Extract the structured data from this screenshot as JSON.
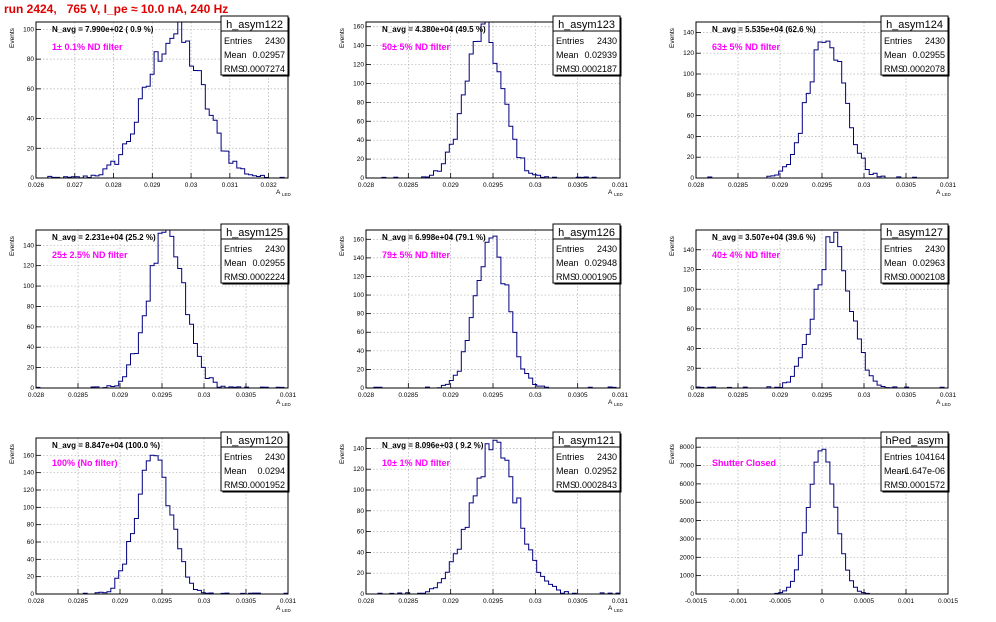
{
  "header": {
    "title": "run 2424,   765 V, I_pe ≈ 10.0 nA, 240 Hz"
  },
  "colors": {
    "title": "#e00000",
    "histogram_line": "#000080",
    "filter_label": "#ff00ff",
    "grid": "#b0b0b0",
    "axis": "#000000"
  },
  "chart_data": [
    {
      "type": "histogram",
      "name": "h_asym122",
      "navg": "N_avg = 7.990e+02 ( 0.9 %)",
      "filter": "1± 0.1% ND filter",
      "stats": [
        [
          "Entries",
          "2430"
        ],
        [
          "Mean",
          "0.02957"
        ],
        [
          "RMS",
          "0.0007274"
        ]
      ],
      "ylabel": "Events",
      "xlabel": "A",
      "xlabel_sub": "LED",
      "xlim": [
        0.026,
        0.0325
      ],
      "ylim": [
        0,
        105
      ],
      "xticks": [
        0.026,
        0.027,
        0.028,
        0.029,
        0.03,
        0.031,
        0.032
      ],
      "xtick_labels": [
        "0.026",
        "0.027",
        "0.028",
        "0.029",
        "0.03",
        "0.031",
        "0.032"
      ],
      "yticks": [
        0,
        20,
        40,
        60,
        80,
        100
      ],
      "peak": 97,
      "mean": 0.02957,
      "sigma": 0.00073
    },
    {
      "type": "histogram",
      "name": "h_asym123",
      "navg": "N_avg = 4.380e+04 (49.5 %)",
      "filter": "50± 5% ND filter",
      "stats": [
        [
          "Entries",
          "2430"
        ],
        [
          "Mean",
          "0.02939"
        ],
        [
          "RMS",
          "0.0002187"
        ]
      ],
      "ylabel": "Events",
      "xlabel": "A",
      "xlabel_sub": "LED",
      "xlim": [
        0.028,
        0.031
      ],
      "ylim": [
        0,
        165
      ],
      "xticks": [
        0.028,
        0.0285,
        0.029,
        0.0295,
        0.03,
        0.0305,
        0.031
      ],
      "xtick_labels": [
        "0.028",
        "0.0285",
        "0.029",
        "0.0295",
        "0.03",
        "0.0305",
        "0.031"
      ],
      "yticks": [
        0,
        20,
        40,
        60,
        80,
        100,
        120,
        140,
        160
      ],
      "peak": 155,
      "mean": 0.02939,
      "sigma": 0.00022
    },
    {
      "type": "histogram",
      "name": "h_asym124",
      "navg": "N_avg = 5.535e+04 (62.6 %)",
      "filter": "63± 5% ND filter",
      "stats": [
        [
          "Entries",
          "2430"
        ],
        [
          "Mean",
          "0.02955"
        ],
        [
          "RMS",
          "0.0002078"
        ]
      ],
      "ylabel": "Events",
      "xlabel": "A",
      "xlabel_sub": "LED",
      "xlim": [
        0.028,
        0.031
      ],
      "ylim": [
        0,
        150
      ],
      "xticks": [
        0.028,
        0.0285,
        0.029,
        0.0295,
        0.03,
        0.0305,
        0.031
      ],
      "xtick_labels": [
        "0.028",
        "0.0285",
        "0.029",
        "0.0295",
        "0.03",
        "0.0305",
        "0.031"
      ],
      "yticks": [
        0,
        20,
        40,
        60,
        80,
        100,
        120,
        140
      ],
      "peak": 142,
      "mean": 0.02955,
      "sigma": 0.00021
    },
    {
      "type": "histogram",
      "name": "h_asym125",
      "navg": "N_avg = 2.231e+04 (25.2 %)",
      "filter": "25± 2.5% ND filter",
      "stats": [
        [
          "Entries",
          "2430"
        ],
        [
          "Mean",
          "0.02955"
        ],
        [
          "RMS",
          "0.0002224"
        ]
      ],
      "ylabel": "Events",
      "xlabel": "A",
      "xlabel_sub": "LED",
      "xlim": [
        0.028,
        0.031
      ],
      "ylim": [
        0,
        155
      ],
      "xticks": [
        0.028,
        0.0285,
        0.029,
        0.0295,
        0.03,
        0.0305,
        0.031
      ],
      "xtick_labels": [
        "0.028",
        "0.0285",
        "0.029",
        "0.0295",
        "0.03",
        "0.0305",
        "0.031"
      ],
      "yticks": [
        0,
        20,
        40,
        60,
        80,
        100,
        120,
        140
      ],
      "peak": 148,
      "mean": 0.02955,
      "sigma": 0.00022
    },
    {
      "type": "histogram",
      "name": "h_asym126",
      "navg": "N_avg = 6.998e+04 (79.1 %)",
      "filter": "79± 5% ND filter",
      "stats": [
        [
          "Entries",
          "2430"
        ],
        [
          "Mean",
          "0.02948"
        ],
        [
          "RMS",
          "0.0001905"
        ]
      ],
      "ylabel": "Events",
      "xlabel": "A",
      "xlabel_sub": "LED",
      "xlim": [
        0.028,
        0.031
      ],
      "ylim": [
        0,
        170
      ],
      "xticks": [
        0.028,
        0.0285,
        0.029,
        0.0295,
        0.03,
        0.0305,
        0.031
      ],
      "xtick_labels": [
        "0.028",
        "0.0285",
        "0.029",
        "0.0295",
        "0.03",
        "0.0305",
        "0.031"
      ],
      "yticks": [
        0,
        20,
        40,
        60,
        80,
        100,
        120,
        140,
        160
      ],
      "peak": 160,
      "mean": 0.02948,
      "sigma": 0.00019
    },
    {
      "type": "histogram",
      "name": "h_asym127",
      "navg": "N_avg = 3.507e+04 (39.6 %)",
      "filter": "40± 4% ND filter",
      "stats": [
        [
          "Entries",
          "2430"
        ],
        [
          "Mean",
          "0.02963"
        ],
        [
          "RMS",
          "0.0002108"
        ]
      ],
      "ylabel": "Events",
      "xlabel": "A",
      "xlabel_sub": "LED",
      "xlim": [
        0.028,
        0.031
      ],
      "ylim": [
        0,
        160
      ],
      "xticks": [
        0.028,
        0.0285,
        0.029,
        0.0295,
        0.03,
        0.0305,
        0.031
      ],
      "xtick_labels": [
        "0.028",
        "0.0285",
        "0.029",
        "0.0295",
        "0.03",
        "0.0305",
        "0.031"
      ],
      "yticks": [
        0,
        20,
        40,
        60,
        80,
        100,
        120,
        140
      ],
      "peak": 150,
      "mean": 0.02963,
      "sigma": 0.00021
    },
    {
      "type": "histogram",
      "name": "h_asym120",
      "navg": "N_avg = 8.847e+04 (100.0 %)",
      "filter": "100% (No filter)",
      "stats": [
        [
          "Entries",
          "2430"
        ],
        [
          "Mean",
          "0.0294"
        ],
        [
          "RMS",
          "0.0001952"
        ]
      ],
      "ylabel": "Events",
      "xlabel": "A",
      "xlabel_sub": "LED",
      "xlim": [
        0.028,
        0.031
      ],
      "ylim": [
        0,
        180
      ],
      "xticks": [
        0.028,
        0.0285,
        0.029,
        0.0295,
        0.03,
        0.0305,
        0.031
      ],
      "xtick_labels": [
        "0.028",
        "0.0285",
        "0.029",
        "0.0295",
        "0.03",
        "0.0305",
        "0.031"
      ],
      "yticks": [
        0,
        20,
        40,
        60,
        80,
        100,
        120,
        140,
        160
      ],
      "peak": 162,
      "mean": 0.0294,
      "sigma": 0.0002
    },
    {
      "type": "histogram",
      "name": "h_asym121",
      "navg": "N_avg = 8.096e+03 ( 9.2 %)",
      "filter": "10± 1% ND filter",
      "stats": [
        [
          "Entries",
          "2430"
        ],
        [
          "Mean",
          "0.02952"
        ],
        [
          "RMS",
          "0.0002843"
        ]
      ],
      "ylabel": "Events",
      "xlabel": "A",
      "xlabel_sub": "LED",
      "xlim": [
        0.028,
        0.031
      ],
      "ylim": [
        0,
        150
      ],
      "xticks": [
        0.028,
        0.0285,
        0.029,
        0.0295,
        0.03,
        0.0305,
        0.031
      ],
      "xtick_labels": [
        "0.028",
        "0.0285",
        "0.029",
        "0.0295",
        "0.03",
        "0.0305",
        "0.031"
      ],
      "yticks": [
        0,
        20,
        40,
        60,
        80,
        100,
        120,
        140
      ],
      "peak": 140,
      "mean": 0.02952,
      "sigma": 0.00028
    },
    {
      "type": "histogram",
      "name": "hPed_asym",
      "navg": "",
      "filter": "Shutter Closed",
      "stats": [
        [
          "Entries",
          "104164"
        ],
        [
          "Mean",
          "-1.647e-06"
        ],
        [
          "RMS",
          "0.0001572"
        ]
      ],
      "ylabel": "Events",
      "xlabel": "",
      "xlabel_sub": "",
      "xlim": [
        -0.0015,
        0.0015
      ],
      "ylim": [
        0,
        8500
      ],
      "xticks": [
        -0.0015,
        -0.001,
        -0.0005,
        0,
        0.0005,
        0.001,
        0.0015
      ],
      "xtick_labels": [
        "-0.0015",
        "-0.001",
        "-0.0005",
        "0",
        "0.0005",
        "0.001",
        "0.0015"
      ],
      "yticks": [
        0,
        1000,
        2000,
        3000,
        4000,
        5000,
        6000,
        7000,
        8000
      ],
      "peak": 7900,
      "mean": 0,
      "sigma": 0.00016
    }
  ]
}
